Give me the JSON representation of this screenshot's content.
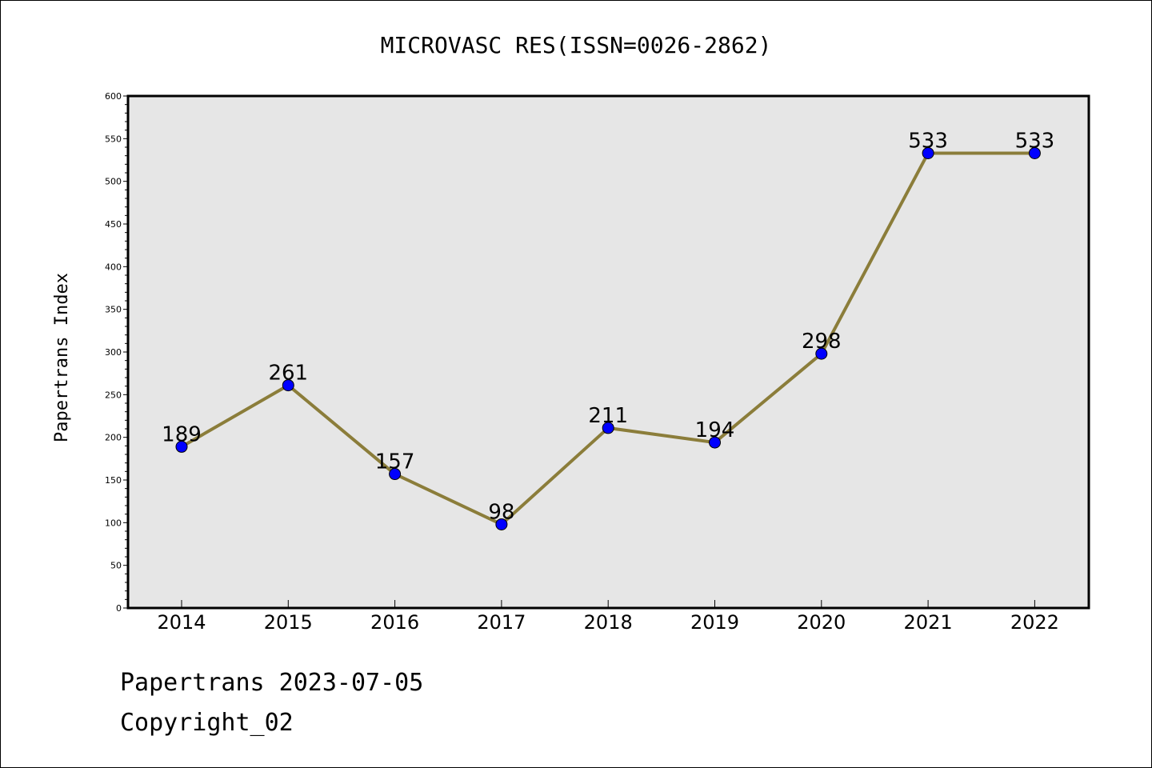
{
  "chart_data": {
    "type": "line",
    "title": "MICROVASC RES(ISSN=0026-2862)",
    "xlabel": "",
    "ylabel": "Papertrans Index",
    "categories": [
      "2014",
      "2015",
      "2016",
      "2017",
      "2018",
      "2019",
      "2020",
      "2021",
      "2022"
    ],
    "series": [
      {
        "values": [
          189,
          261,
          157,
          98,
          211,
          194,
          298,
          533,
          533
        ]
      }
    ],
    "ylim": [
      0,
      600
    ],
    "yticks": [
      0,
      50,
      100,
      150,
      200,
      250,
      300,
      350,
      400,
      450,
      500,
      550,
      600
    ],
    "grid": false,
    "colors": {
      "line": "#8b7d3a",
      "marker": "#0000ff",
      "plot_bg": "#e6e6e6"
    }
  },
  "footer": {
    "date_line": "Papertrans 2023-07-05",
    "copyright_line": "Copyright_02"
  }
}
